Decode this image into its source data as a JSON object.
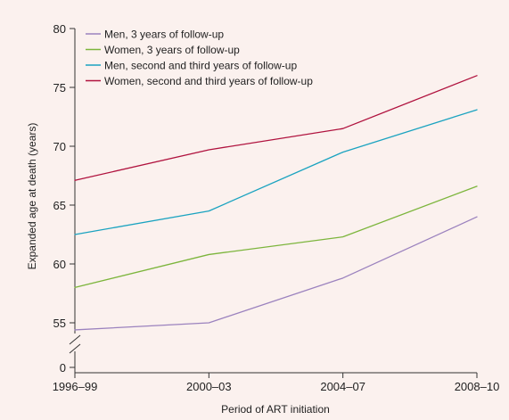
{
  "chart_data": {
    "type": "line",
    "title": "",
    "xlabel": "Period of ART initiation",
    "ylabel": "Expanded age at death (years)",
    "categories": [
      "1996–99",
      "2000–03",
      "2004–07",
      "2008–10"
    ],
    "yticks": [
      55,
      60,
      65,
      70,
      75,
      80
    ],
    "ybreak_tick": 0,
    "ylim": [
      53,
      80
    ],
    "grid": false,
    "legend_position": "top-left",
    "series": [
      {
        "name": "Men, 3 years of follow-up",
        "color": "#9b82be",
        "values": [
          54.4,
          55.0,
          58.8,
          64.0
        ]
      },
      {
        "name": "Women, 3 years of follow-up",
        "color": "#7cb53c",
        "values": [
          58.0,
          60.8,
          62.3,
          66.6
        ]
      },
      {
        "name": "Men, second and third years of follow-up",
        "color": "#1aa3c0",
        "values": [
          62.5,
          64.5,
          69.5,
          73.1
        ]
      },
      {
        "name": "Women, second and third years of follow-up",
        "color": "#b0123e",
        "values": [
          67.1,
          69.7,
          71.5,
          76.0
        ]
      }
    ]
  }
}
